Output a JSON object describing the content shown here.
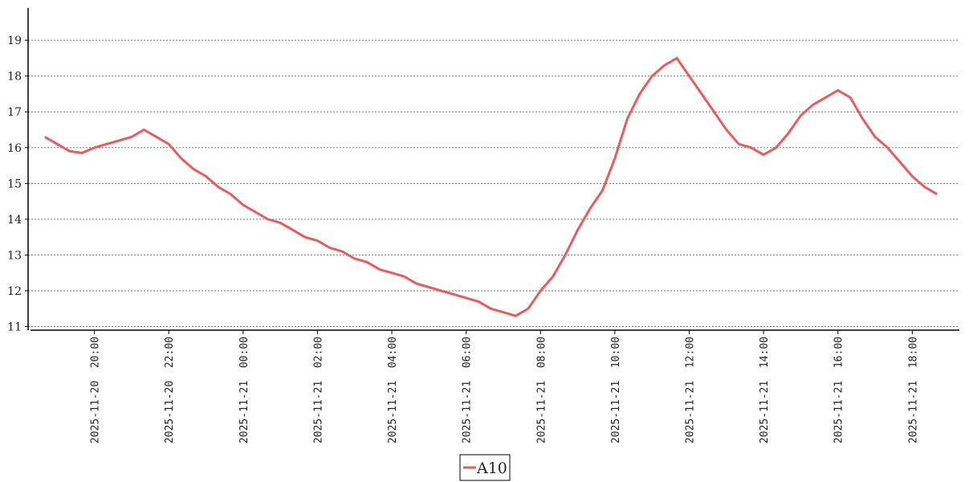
{
  "chart_data": {
    "type": "line",
    "x": [
      "2025-11-20 18:40",
      "2025-11-20 19:00",
      "2025-11-20 19:20",
      "2025-11-20 19:40",
      "2025-11-20 20:00",
      "2025-11-20 20:20",
      "2025-11-20 20:40",
      "2025-11-20 21:00",
      "2025-11-20 21:20",
      "2025-11-20 21:40",
      "2025-11-20 22:00",
      "2025-11-20 22:20",
      "2025-11-20 22:40",
      "2025-11-20 23:00",
      "2025-11-20 23:20",
      "2025-11-20 23:40",
      "2025-11-21 00:00",
      "2025-11-21 00:20",
      "2025-11-21 00:40",
      "2025-11-21 01:00",
      "2025-11-21 01:20",
      "2025-11-21 01:40",
      "2025-11-21 02:00",
      "2025-11-21 02:20",
      "2025-11-21 02:40",
      "2025-11-21 03:00",
      "2025-11-21 03:20",
      "2025-11-21 03:40",
      "2025-11-21 04:00",
      "2025-11-21 04:20",
      "2025-11-21 04:40",
      "2025-11-21 05:00",
      "2025-11-21 05:20",
      "2025-11-21 05:40",
      "2025-11-21 06:00",
      "2025-11-21 06:20",
      "2025-11-21 06:40",
      "2025-11-21 07:00",
      "2025-11-21 07:20",
      "2025-11-21 07:40",
      "2025-11-21 08:00",
      "2025-11-21 08:20",
      "2025-11-21 08:40",
      "2025-11-21 09:00",
      "2025-11-21 09:20",
      "2025-11-21 09:40",
      "2025-11-21 10:00",
      "2025-11-21 10:20",
      "2025-11-21 10:40",
      "2025-11-21 11:00",
      "2025-11-21 11:20",
      "2025-11-21 11:40",
      "2025-11-21 12:00",
      "2025-11-21 12:20",
      "2025-11-21 12:40",
      "2025-11-21 13:00",
      "2025-11-21 13:20",
      "2025-11-21 13:40",
      "2025-11-21 14:00",
      "2025-11-21 14:20",
      "2025-11-21 14:40",
      "2025-11-21 15:00",
      "2025-11-21 15:20",
      "2025-11-21 15:40",
      "2025-11-21 16:00",
      "2025-11-21 16:20",
      "2025-11-21 16:40",
      "2025-11-21 17:00",
      "2025-11-21 17:20",
      "2025-11-21 17:40",
      "2025-11-21 18:00",
      "2025-11-21 18:20",
      "2025-11-21 18:40"
    ],
    "series": [
      {
        "name": "A10",
        "color": "#e85c5c",
        "values": [
          16.3,
          16.1,
          15.9,
          15.85,
          16.0,
          16.1,
          16.2,
          16.3,
          16.5,
          16.3,
          16.1,
          15.7,
          15.4,
          15.2,
          14.9,
          14.7,
          14.4,
          14.2,
          14.0,
          13.9,
          13.7,
          13.5,
          13.4,
          13.2,
          13.1,
          12.9,
          12.8,
          12.6,
          12.5,
          12.4,
          12.2,
          12.1,
          12.0,
          11.9,
          11.8,
          11.7,
          11.5,
          11.4,
          11.3,
          11.5,
          12.0,
          12.4,
          13.0,
          13.7,
          14.3,
          14.8,
          15.7,
          16.8,
          17.5,
          18.0,
          18.3,
          18.5,
          18.0,
          17.5,
          17.0,
          16.5,
          16.1,
          16.0,
          15.8,
          16.0,
          16.4,
          16.9,
          17.2,
          17.4,
          17.6,
          17.4,
          16.8,
          16.3,
          16.0,
          15.6,
          15.2,
          14.9,
          14.7
        ]
      }
    ],
    "xlim": [
      "2025-11-20 18:13",
      "2025-11-21 19:16"
    ],
    "xticks": [
      {
        "value": "2025-11-20 20:00",
        "label": "2025-11-20  20:00"
      },
      {
        "value": "2025-11-20 22:00",
        "label": "2025-11-20  22:00"
      },
      {
        "value": "2025-11-21 00:00",
        "label": "2025-11-21  00:00"
      },
      {
        "value": "2025-11-21 02:00",
        "label": "2025-11-21  02:00"
      },
      {
        "value": "2025-11-21 04:00",
        "label": "2025-11-21  04:00"
      },
      {
        "value": "2025-11-21 06:00",
        "label": "2025-11-21  06:00"
      },
      {
        "value": "2025-11-21 08:00",
        "label": "2025-11-21  08:00"
      },
      {
        "value": "2025-11-21 10:00",
        "label": "2025-11-21  10:00"
      },
      {
        "value": "2025-11-21 12:00",
        "label": "2025-11-21  12:00"
      },
      {
        "value": "2025-11-21 14:00",
        "label": "2025-11-21  14:00"
      },
      {
        "value": "2025-11-21 16:00",
        "label": "2025-11-21  16:00"
      },
      {
        "value": "2025-11-21 18:00",
        "label": "2025-11-21  18:00"
      }
    ],
    "ylim": [
      10.9,
      19.9
    ],
    "yticks": [
      11,
      12,
      13,
      14,
      15,
      16,
      17,
      18,
      19
    ],
    "grid": true,
    "legend": "bottom"
  }
}
